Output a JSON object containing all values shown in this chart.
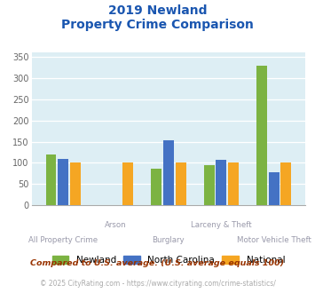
{
  "title_line1": "2019 Newland",
  "title_line2": "Property Crime Comparison",
  "categories": [
    "All Property Crime",
    "Arson",
    "Burglary",
    "Larceny & Theft",
    "Motor Vehicle Theft"
  ],
  "newland": [
    120,
    0,
    87,
    95,
    330
  ],
  "north_carolina": [
    110,
    0,
    153,
    108,
    78
  ],
  "national": [
    100,
    100,
    100,
    100,
    100
  ],
  "color_newland": "#7cb342",
  "color_nc": "#4472c4",
  "color_national": "#f5a623",
  "ylim": [
    0,
    360
  ],
  "yticks": [
    0,
    50,
    100,
    150,
    200,
    250,
    300,
    350
  ],
  "plot_bg": "#ddeef4",
  "title_color": "#1a56b0",
  "xlabel_color": "#9999aa",
  "legend_labels": [
    "Newland",
    "North Carolina",
    "National"
  ],
  "footnote1": "Compared to U.S. average. (U.S. average equals 100)",
  "footnote2": "© 2025 CityRating.com - https://www.cityrating.com/crime-statistics/",
  "footnote1_color": "#993300",
  "footnote2_color": "#aaaaaa",
  "bar_width": 0.2,
  "bar_gap": 0.03
}
